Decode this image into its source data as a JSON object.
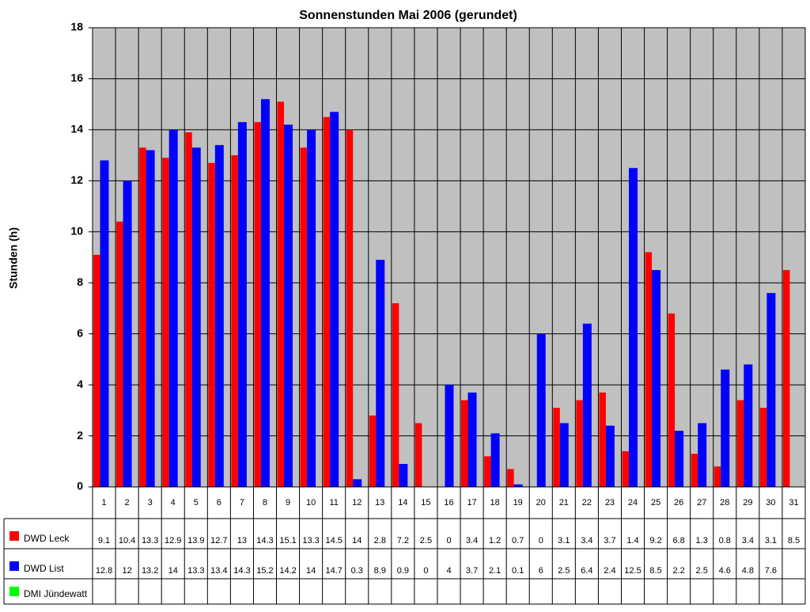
{
  "chart_data": {
    "type": "bar",
    "title": "Sonnenstunden Mai 2006 (gerundet)",
    "y_label": "Stunden (h)",
    "categories": [
      "1",
      "2",
      "3",
      "4",
      "5",
      "6",
      "7",
      "8",
      "9",
      "10",
      "11",
      "12",
      "13",
      "14",
      "15",
      "16",
      "17",
      "18",
      "19",
      "20",
      "21",
      "22",
      "23",
      "24",
      "25",
      "26",
      "27",
      "28",
      "29",
      "30",
      "31"
    ],
    "series": [
      {
        "name": "DWD Leck",
        "color": "#ff0000",
        "values": [
          9.1,
          10.4,
          13.3,
          12.9,
          13.9,
          12.7,
          13,
          14.3,
          15.1,
          13.3,
          14.5,
          14,
          2.8,
          7.2,
          2.5,
          0,
          3.4,
          1.2,
          0.7,
          0,
          3.1,
          3.4,
          3.7,
          1.4,
          9.2,
          6.8,
          1.3,
          0.8,
          3.4,
          3.1,
          8.5
        ]
      },
      {
        "name": "DWD List",
        "color": "#0000ff",
        "values": [
          12.8,
          12,
          13.2,
          14,
          13.3,
          13.4,
          14.3,
          15.2,
          14.2,
          14,
          14.7,
          0.3,
          8.9,
          0.9,
          0,
          4,
          3.7,
          2.1,
          0.1,
          6,
          2.5,
          6.4,
          2.4,
          12.5,
          8.5,
          2.2,
          2.5,
          4.6,
          4.8,
          7.6,
          null
        ]
      },
      {
        "name": "DMI Jündewatt",
        "color": "#00ff00",
        "values": [
          null,
          null,
          null,
          null,
          null,
          null,
          null,
          null,
          null,
          null,
          null,
          null,
          null,
          null,
          null,
          null,
          null,
          null,
          null,
          null,
          null,
          null,
          null,
          null,
          null,
          null,
          null,
          null,
          null,
          null,
          null
        ]
      }
    ],
    "ylim": [
      0,
      18
    ],
    "yticks": [
      0,
      2,
      4,
      6,
      8,
      10,
      12,
      14,
      16,
      18
    ],
    "grid": true,
    "plot_background": "#c0c0c0"
  }
}
